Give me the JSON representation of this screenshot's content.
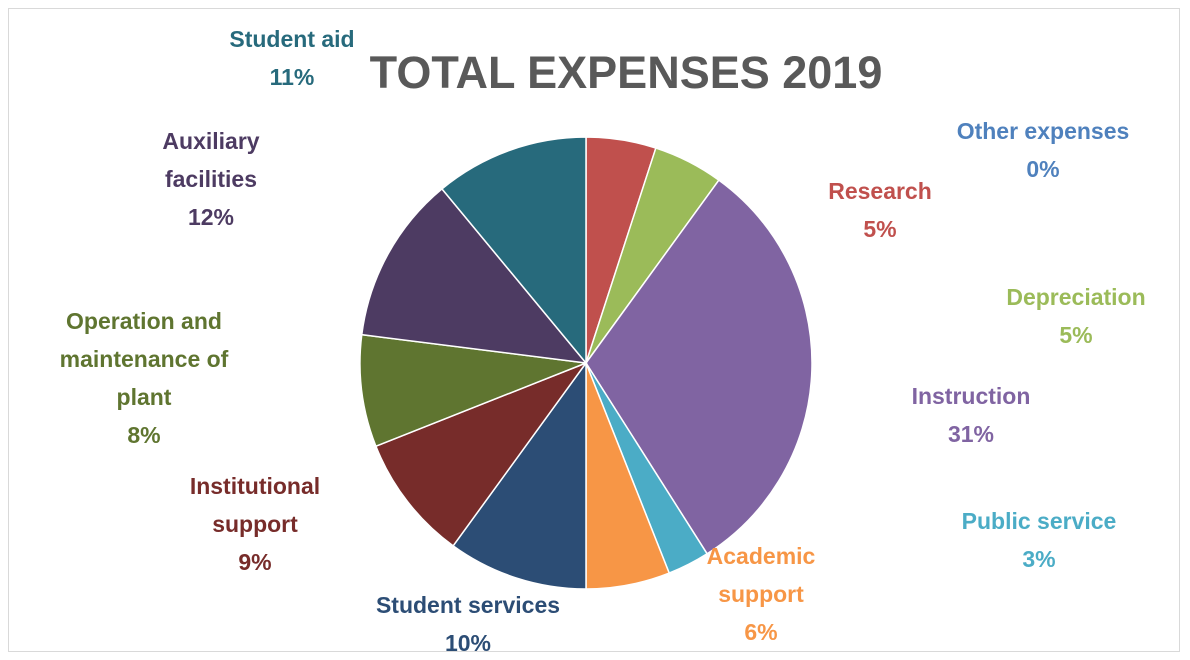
{
  "chart_data": {
    "type": "pie",
    "title": "TOTAL EXPENSES 2019",
    "slices": [
      {
        "label_lines": [
          "Other expenses"
        ],
        "percent_label": "0%",
        "value": 0,
        "color": "#4f81bd"
      },
      {
        "label_lines": [
          "Research"
        ],
        "percent_label": "5%",
        "value": 5,
        "color": "#c0504d"
      },
      {
        "label_lines": [
          "Depreciation"
        ],
        "percent_label": "5%",
        "value": 5,
        "color": "#9bbb59"
      },
      {
        "label_lines": [
          "Instruction"
        ],
        "percent_label": "31%",
        "value": 31,
        "color": "#8064a2"
      },
      {
        "label_lines": [
          "Public service"
        ],
        "percent_label": "3%",
        "value": 3,
        "color": "#4bacc6"
      },
      {
        "label_lines": [
          "Academic",
          "support"
        ],
        "percent_label": "6%",
        "value": 6,
        "color": "#f79646"
      },
      {
        "label_lines": [
          "Student services"
        ],
        "percent_label": "10%",
        "value": 10,
        "color": "#2c4d75"
      },
      {
        "label_lines": [
          "Institutional",
          "support"
        ],
        "percent_label": "9%",
        "value": 9,
        "color": "#772c2a"
      },
      {
        "label_lines": [
          "Operation and",
          "maintenance of",
          "plant"
        ],
        "percent_label": "8%",
        "value": 8,
        "color": "#5f7530"
      },
      {
        "label_lines": [
          "Auxiliary",
          "facilities"
        ],
        "percent_label": "12%",
        "value": 12,
        "color": "#4d3b62"
      },
      {
        "label_lines": [
          "Student aid"
        ],
        "percent_label": "11%",
        "value": 11,
        "color": "#276a7c"
      }
    ]
  }
}
